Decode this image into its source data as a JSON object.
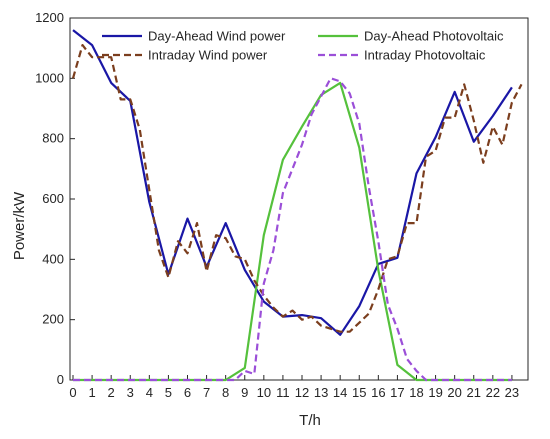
{
  "chart_data": {
    "type": "line",
    "xlabel": "T/h",
    "ylabel": "Power/kW",
    "xlim": [
      0,
      24
    ],
    "ylim": [
      0,
      1200
    ],
    "x_ticks": [
      0,
      1,
      2,
      3,
      4,
      5,
      6,
      7,
      8,
      9,
      10,
      11,
      12,
      13,
      14,
      15,
      16,
      17,
      18,
      19,
      20,
      21,
      22,
      23
    ],
    "y_ticks": [
      0,
      200,
      400,
      600,
      800,
      1000,
      1200
    ],
    "legend_position": "top",
    "series": [
      {
        "name": "Day-Ahead Wind power",
        "color": "#1a17a6",
        "style": "solid",
        "x": [
          0,
          1,
          2,
          3,
          4,
          5,
          6,
          7,
          8,
          9,
          10,
          11,
          12,
          13,
          14,
          15,
          16,
          17,
          18,
          19,
          20,
          21,
          22,
          23
        ],
        "values": [
          1160,
          1110,
          985,
          925,
          590,
          350,
          535,
          375,
          520,
          365,
          260,
          210,
          215,
          205,
          150,
          245,
          385,
          405,
          685,
          805,
          955,
          790,
          875,
          970
        ]
      },
      {
        "name": "Day-Ahead Photovoltaic",
        "color": "#55c13c",
        "style": "solid",
        "x": [
          0,
          1,
          2,
          3,
          4,
          5,
          6,
          7,
          8,
          9,
          10,
          11,
          12,
          13,
          14,
          15,
          16,
          17,
          18,
          19,
          20,
          21,
          22,
          23
        ],
        "values": [
          0,
          0,
          0,
          0,
          0,
          0,
          0,
          0,
          0,
          40,
          480,
          730,
          840,
          945,
          985,
          770,
          365,
          50,
          0,
          0,
          0,
          0,
          0,
          0
        ]
      },
      {
        "name": "Intraday Wind power",
        "color": "#7b3e1e",
        "style": "dashed",
        "x": [
          0,
          0.5,
          1,
          1.5,
          2,
          2.5,
          3,
          3.5,
          4,
          4.5,
          5,
          5.5,
          6,
          6.5,
          7,
          7.5,
          8,
          8.5,
          9,
          9.5,
          10,
          10.5,
          11,
          11.5,
          12,
          12.5,
          13,
          13.5,
          14,
          14.5,
          15,
          15.5,
          16,
          16.5,
          17,
          17.5,
          18,
          18.5,
          19,
          19.5,
          20,
          20.5,
          21,
          21.5,
          22,
          22.5,
          23,
          23.5
        ],
        "values": [
          1000,
          1110,
          1070,
          1070,
          1070,
          930,
          930,
          830,
          630,
          430,
          340,
          460,
          420,
          520,
          360,
          480,
          470,
          410,
          400,
          330,
          280,
          240,
          210,
          230,
          200,
          210,
          180,
          170,
          160,
          160,
          190,
          220,
          300,
          400,
          410,
          520,
          520,
          740,
          760,
          870,
          870,
          980,
          860,
          720,
          840,
          780,
          920,
          980
        ]
      },
      {
        "name": "Intraday Photovoltaic",
        "color": "#9b4fd8",
        "style": "dashed",
        "x": [
          0,
          1,
          2,
          3,
          4,
          5,
          6,
          7,
          8,
          8.5,
          9,
          9.5,
          10,
          10.5,
          11,
          11.5,
          12,
          12.5,
          13,
          13.5,
          14,
          14.5,
          15,
          15.5,
          16,
          16.5,
          17,
          17.5,
          18,
          18.5,
          19,
          20,
          21,
          22,
          23
        ],
        "values": [
          0,
          0,
          0,
          0,
          0,
          0,
          0,
          0,
          0,
          0,
          30,
          20,
          320,
          430,
          620,
          700,
          780,
          880,
          940,
          1000,
          990,
          950,
          850,
          640,
          460,
          250,
          170,
          70,
          30,
          0,
          0,
          0,
          0,
          0,
          0
        ]
      }
    ]
  }
}
